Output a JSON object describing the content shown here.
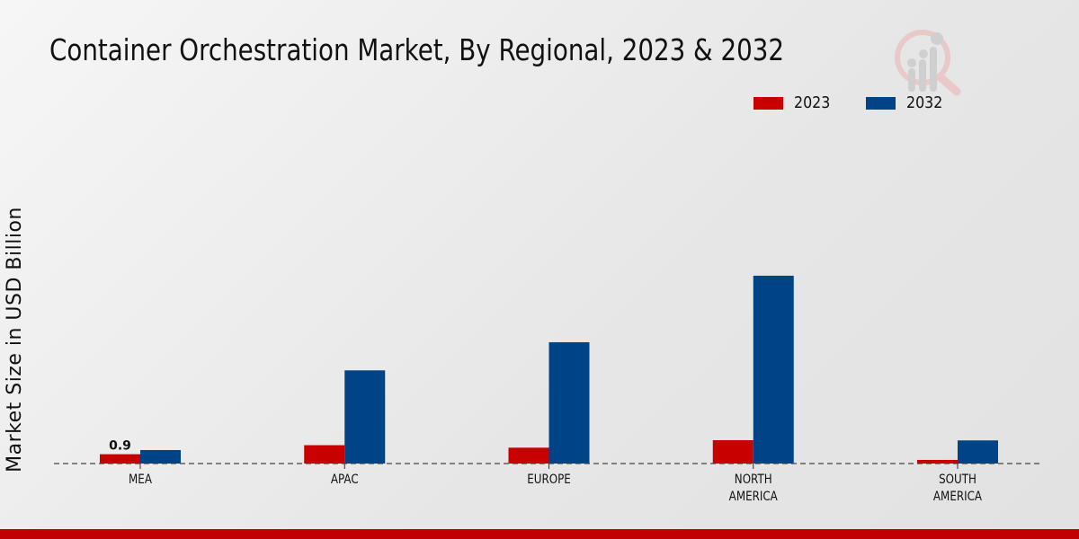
{
  "chart_data": {
    "type": "bar",
    "title": "Container Orchestration Market, By Regional, 2023 & 2032",
    "xlabel": "",
    "ylabel": "Market Size in USD Billion",
    "categories": [
      "MEA",
      "APAC",
      "EUROPE",
      "NORTH\nAMERICA",
      "SOUTH\nAMERICA"
    ],
    "series": [
      {
        "name": "2023",
        "color": "#c80000",
        "values": [
          0.9,
          1.77,
          1.53,
          2.25,
          0.35
        ]
      },
      {
        "name": "2032",
        "color": "#004488",
        "values": [
          1.3,
          8.98,
          11.69,
          18.1,
          2.23
        ]
      }
    ],
    "data_labels": [
      {
        "series": "2023",
        "category": "MEA",
        "text": "0.9"
      }
    ],
    "ylim": [
      0,
      20
    ],
    "grid": false,
    "legend": "top-right"
  }
}
